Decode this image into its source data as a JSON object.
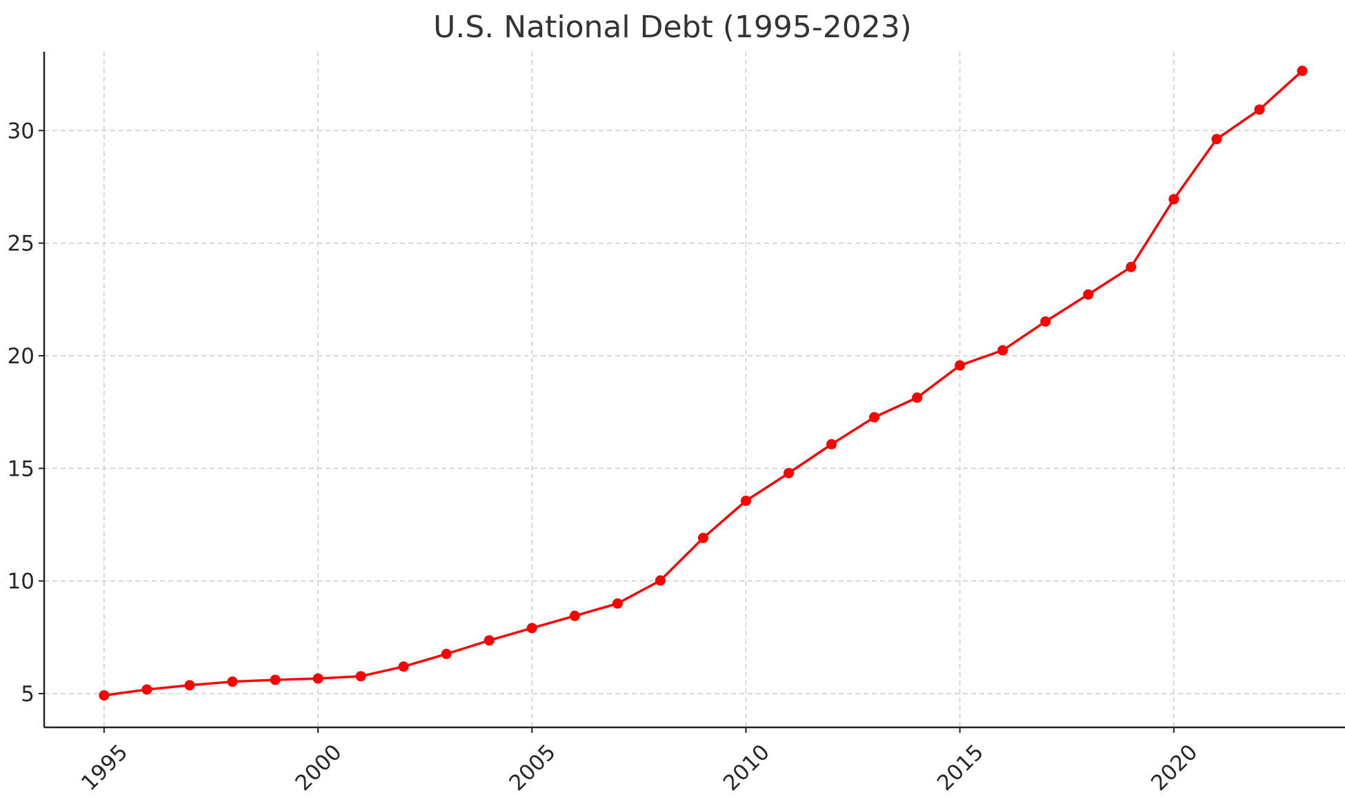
{
  "chart_data": {
    "type": "line",
    "title": "U.S. National Debt (1995-2023)",
    "xlabel": "",
    "ylabel": "",
    "x": [
      1995,
      1996,
      1997,
      1998,
      1999,
      2000,
      2001,
      2002,
      2003,
      2004,
      2005,
      2006,
      2007,
      2008,
      2009,
      2010,
      2011,
      2012,
      2013,
      2014,
      2015,
      2016,
      2017,
      2018,
      2019,
      2020,
      2021,
      2022,
      2023
    ],
    "series": [
      {
        "values": [
          4.92,
          5.18,
          5.37,
          5.53,
          5.61,
          5.67,
          5.77,
          6.2,
          6.76,
          7.36,
          7.91,
          8.45,
          9.0,
          10.02,
          11.91,
          13.56,
          14.79,
          16.07,
          17.27,
          18.14,
          19.57,
          20.24,
          21.52,
          22.72,
          23.94,
          26.95,
          29.62,
          30.93,
          32.65
        ],
        "color": "#ff0000",
        "marker": "circle"
      }
    ],
    "xlim": [
      1993.6,
      2024.0
    ],
    "ylim": [
      3.5,
      33.5
    ],
    "xticks": [
      1995,
      2000,
      2005,
      2010,
      2015,
      2020
    ],
    "xtick_labels": [
      "1995",
      "2000",
      "2005",
      "2010",
      "2015",
      "2020"
    ],
    "xtick_rotation": 45,
    "yticks": [
      5,
      10,
      15,
      20,
      25,
      30
    ],
    "ytick_labels": [
      "5",
      "10",
      "15",
      "20",
      "25",
      "30"
    ],
    "grid": true,
    "grid_style": "dashed",
    "legend": false
  }
}
